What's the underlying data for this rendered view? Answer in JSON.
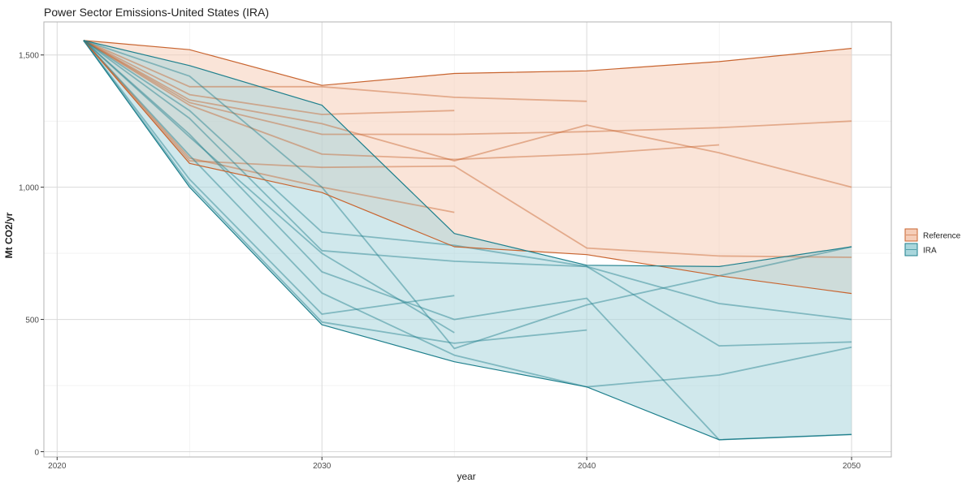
{
  "chart_data": {
    "type": "line",
    "title": "Power Sector Emissions-United States (IRA)",
    "xlabel": "year",
    "ylabel": "Mt CO2/yr",
    "xlim": [
      2019.5,
      2051.5
    ],
    "ylim": [
      -20,
      1625
    ],
    "x_ticks": [
      2020,
      2030,
      2040,
      2050
    ],
    "x_tick_labels": [
      "2020",
      "2030",
      "2040",
      "2050"
    ],
    "y_ticks": [
      0,
      500,
      1000,
      1500
    ],
    "y_tick_labels": [
      "0",
      "500",
      "1,000",
      "1,500"
    ],
    "grid": true,
    "legend": {
      "position": "right",
      "entries": [
        {
          "label": "Reference",
          "color": "#c8642f",
          "fill": "#f5cdb8"
        },
        {
          "label": "IRA",
          "color": "#1e7f8c",
          "fill": "#a9d6dc"
        }
      ]
    },
    "series": [
      {
        "name": "Reference",
        "range": {
          "x": [
            2021,
            2025,
            2030,
            2035,
            2040,
            2045,
            2050
          ],
          "upper": [
            1555,
            1520,
            1385,
            1430,
            1440,
            1475,
            1525
          ],
          "lower": [
            1555,
            1090,
            980,
            775,
            745,
            665,
            598
          ]
        },
        "model_runs": [
          {
            "x": [
              2021,
              2025,
              2030,
              2035,
              2040
            ],
            "y": [
              1555,
              1380,
              1380,
              1340,
              1325
            ]
          },
          {
            "x": [
              2021,
              2025,
              2030,
              2035
            ],
            "y": [
              1555,
              1350,
              1275,
              1290
            ]
          },
          {
            "x": [
              2021,
              2025,
              2030,
              2035,
              2040,
              2045,
              2050
            ],
            "y": [
              1555,
              1330,
              1240,
              1100,
              1235,
              1130,
              1000
            ]
          },
          {
            "x": [
              2021,
              2025,
              2030,
              2035,
              2040,
              2045,
              2050
            ],
            "y": [
              1555,
              1320,
              1200,
              1200,
              1210,
              1225,
              1250
            ]
          },
          {
            "x": [
              2021,
              2025,
              2030,
              2035,
              2040,
              2045
            ],
            "y": [
              1555,
              1310,
              1125,
              1105,
              1125,
              1160
            ]
          },
          {
            "x": [
              2021,
              2025,
              2030,
              2035,
              2040,
              2045,
              2050
            ],
            "y": [
              1555,
              1100,
              1075,
              1080,
              770,
              740,
              735
            ]
          },
          {
            "x": [
              2021,
              2025,
              2030,
              2035
            ],
            "y": [
              1555,
              1110,
              1000,
              905
            ]
          }
        ]
      },
      {
        "name": "IRA",
        "range": {
          "x": [
            2021,
            2025,
            2030,
            2035,
            2040,
            2045,
            2050
          ],
          "upper": [
            1555,
            1460,
            1310,
            825,
            705,
            700,
            775
          ],
          "lower": [
            1555,
            1000,
            480,
            340,
            245,
            45,
            65
          ]
        },
        "model_runs": [
          {
            "x": [
              2021,
              2025,
              2030,
              2035,
              2040,
              2045,
              2050
            ],
            "y": [
              1555,
              1420,
              1000,
              390,
              555,
              665,
              775
            ]
          },
          {
            "x": [
              2021,
              2025,
              2030,
              2035,
              2040,
              2045,
              2050
            ],
            "y": [
              1555,
              1290,
              830,
              780,
              700,
              560,
              500
            ]
          },
          {
            "x": [
              2021,
              2025,
              2030,
              2035,
              2040,
              2045,
              2050
            ],
            "y": [
              1555,
              1260,
              760,
              720,
              700,
              400,
              415
            ]
          },
          {
            "x": [
              2021,
              2025,
              2030,
              2035,
              2040,
              2045,
              2050
            ],
            "y": [
              1555,
              1200,
              680,
              500,
              580,
              45,
              65
            ]
          },
          {
            "x": [
              2021,
              2025,
              2030,
              2035,
              2040,
              2045,
              2050
            ],
            "y": [
              1555,
              1120,
              600,
              365,
              245,
              290,
              395
            ]
          },
          {
            "x": [
              2021,
              2025,
              2030,
              2035
            ],
            "y": [
              1555,
              1030,
              520,
              590
            ]
          },
          {
            "x": [
              2021,
              2025,
              2030,
              2035,
              2040
            ],
            "y": [
              1555,
              1010,
              490,
              410,
              460
            ]
          },
          {
            "x": [
              2021,
              2025,
              2030,
              2035
            ],
            "y": [
              1555,
              1190,
              750,
              450
            ]
          }
        ]
      }
    ]
  }
}
